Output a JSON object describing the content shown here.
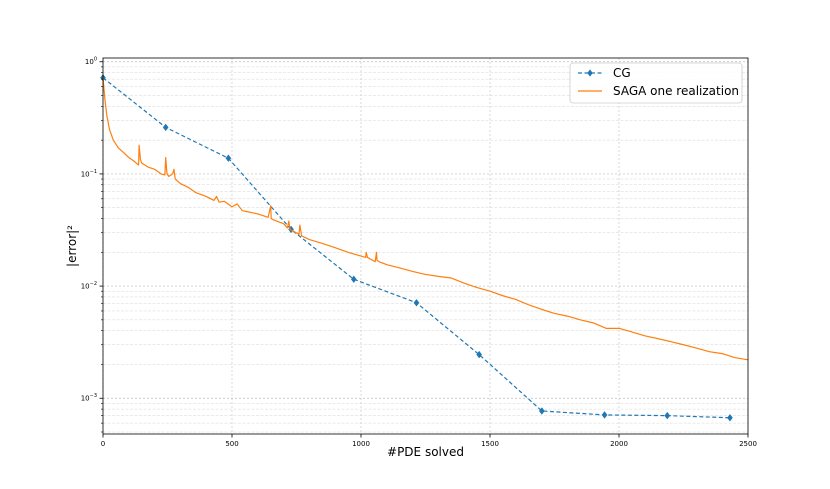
{
  "chart_data": {
    "type": "line",
    "title": "",
    "xlabel": "#PDE solved",
    "ylabel": "|error|²",
    "xlim": [
      0,
      2500
    ],
    "ylim": [
      0.00048,
      1.08
    ],
    "yscale": "log",
    "grid": true,
    "legend_position": "top-right",
    "x_ticks": [
      0,
      500,
      1000,
      1500,
      2000,
      2500
    ],
    "y_ticks": [
      {
        "value": 0.001,
        "base": "10",
        "exp": "−3"
      },
      {
        "value": 0.01,
        "base": "10",
        "exp": "−2"
      },
      {
        "value": 0.1,
        "base": "10",
        "exp": "−1"
      },
      {
        "value": 1,
        "base": "10",
        "exp": "0"
      }
    ],
    "series": [
      {
        "name": "CG",
        "color": "#1f77b4",
        "style": "dashed",
        "marker": "diamond",
        "x": [
          0,
          243,
          486,
          729,
          972,
          1215,
          1458,
          1701,
          1944,
          2187,
          2430
        ],
        "y": [
          0.72,
          0.26,
          0.138,
          0.032,
          0.0115,
          0.0071,
          0.00245,
          0.00077,
          0.00071,
          0.0007,
          0.00067
        ]
      },
      {
        "name": "SAGA one realization",
        "color": "#ff7f0e",
        "style": "solid",
        "marker": "none",
        "x": [
          0,
          3,
          8,
          15,
          25,
          40,
          60,
          80,
          100,
          120,
          138,
          140,
          145,
          150,
          175,
          200,
          225,
          240,
          243,
          248,
          255,
          270,
          275,
          280,
          300,
          330,
          360,
          400,
          430,
          440,
          450,
          470,
          500,
          520,
          540,
          560,
          600,
          640,
          650,
          652,
          660,
          700,
          715,
          720,
          725,
          735,
          760,
          763,
          770,
          800,
          850,
          900,
          950,
          1000,
          1018,
          1020,
          1025,
          1035,
          1045,
          1055,
          1060,
          1062,
          1070,
          1100,
          1150,
          1200,
          1250,
          1300,
          1350,
          1400,
          1450,
          1500,
          1550,
          1600,
          1650,
          1700,
          1750,
          1800,
          1850,
          1900,
          1950,
          2000,
          2050,
          2100,
          2150,
          2200,
          2250,
          2300,
          2350,
          2400,
          2450,
          2500
        ],
        "y": [
          0.73,
          0.6,
          0.45,
          0.33,
          0.25,
          0.2,
          0.17,
          0.155,
          0.14,
          0.13,
          0.12,
          0.18,
          0.135,
          0.125,
          0.115,
          0.11,
          0.1,
          0.098,
          0.14,
          0.1,
          0.095,
          0.1,
          0.11,
          0.09,
          0.082,
          0.076,
          0.068,
          0.063,
          0.058,
          0.063,
          0.056,
          0.057,
          0.051,
          0.054,
          0.047,
          0.046,
          0.044,
          0.041,
          0.052,
          0.04,
          0.039,
          0.036,
          0.033,
          0.038,
          0.032,
          0.031,
          0.029,
          0.035,
          0.028,
          0.026,
          0.024,
          0.022,
          0.02,
          0.0185,
          0.018,
          0.02,
          0.018,
          0.0175,
          0.017,
          0.0165,
          0.02,
          0.017,
          0.0165,
          0.0155,
          0.0145,
          0.0135,
          0.0127,
          0.0122,
          0.0118,
          0.0106,
          0.0097,
          0.009,
          0.0082,
          0.0076,
          0.0068,
          0.0062,
          0.0057,
          0.0054,
          0.005,
          0.0047,
          0.0042,
          0.0042,
          0.0039,
          0.0036,
          0.0034,
          0.0032,
          0.003,
          0.0028,
          0.0026,
          0.0025,
          0.0023,
          0.0022
        ]
      }
    ]
  }
}
